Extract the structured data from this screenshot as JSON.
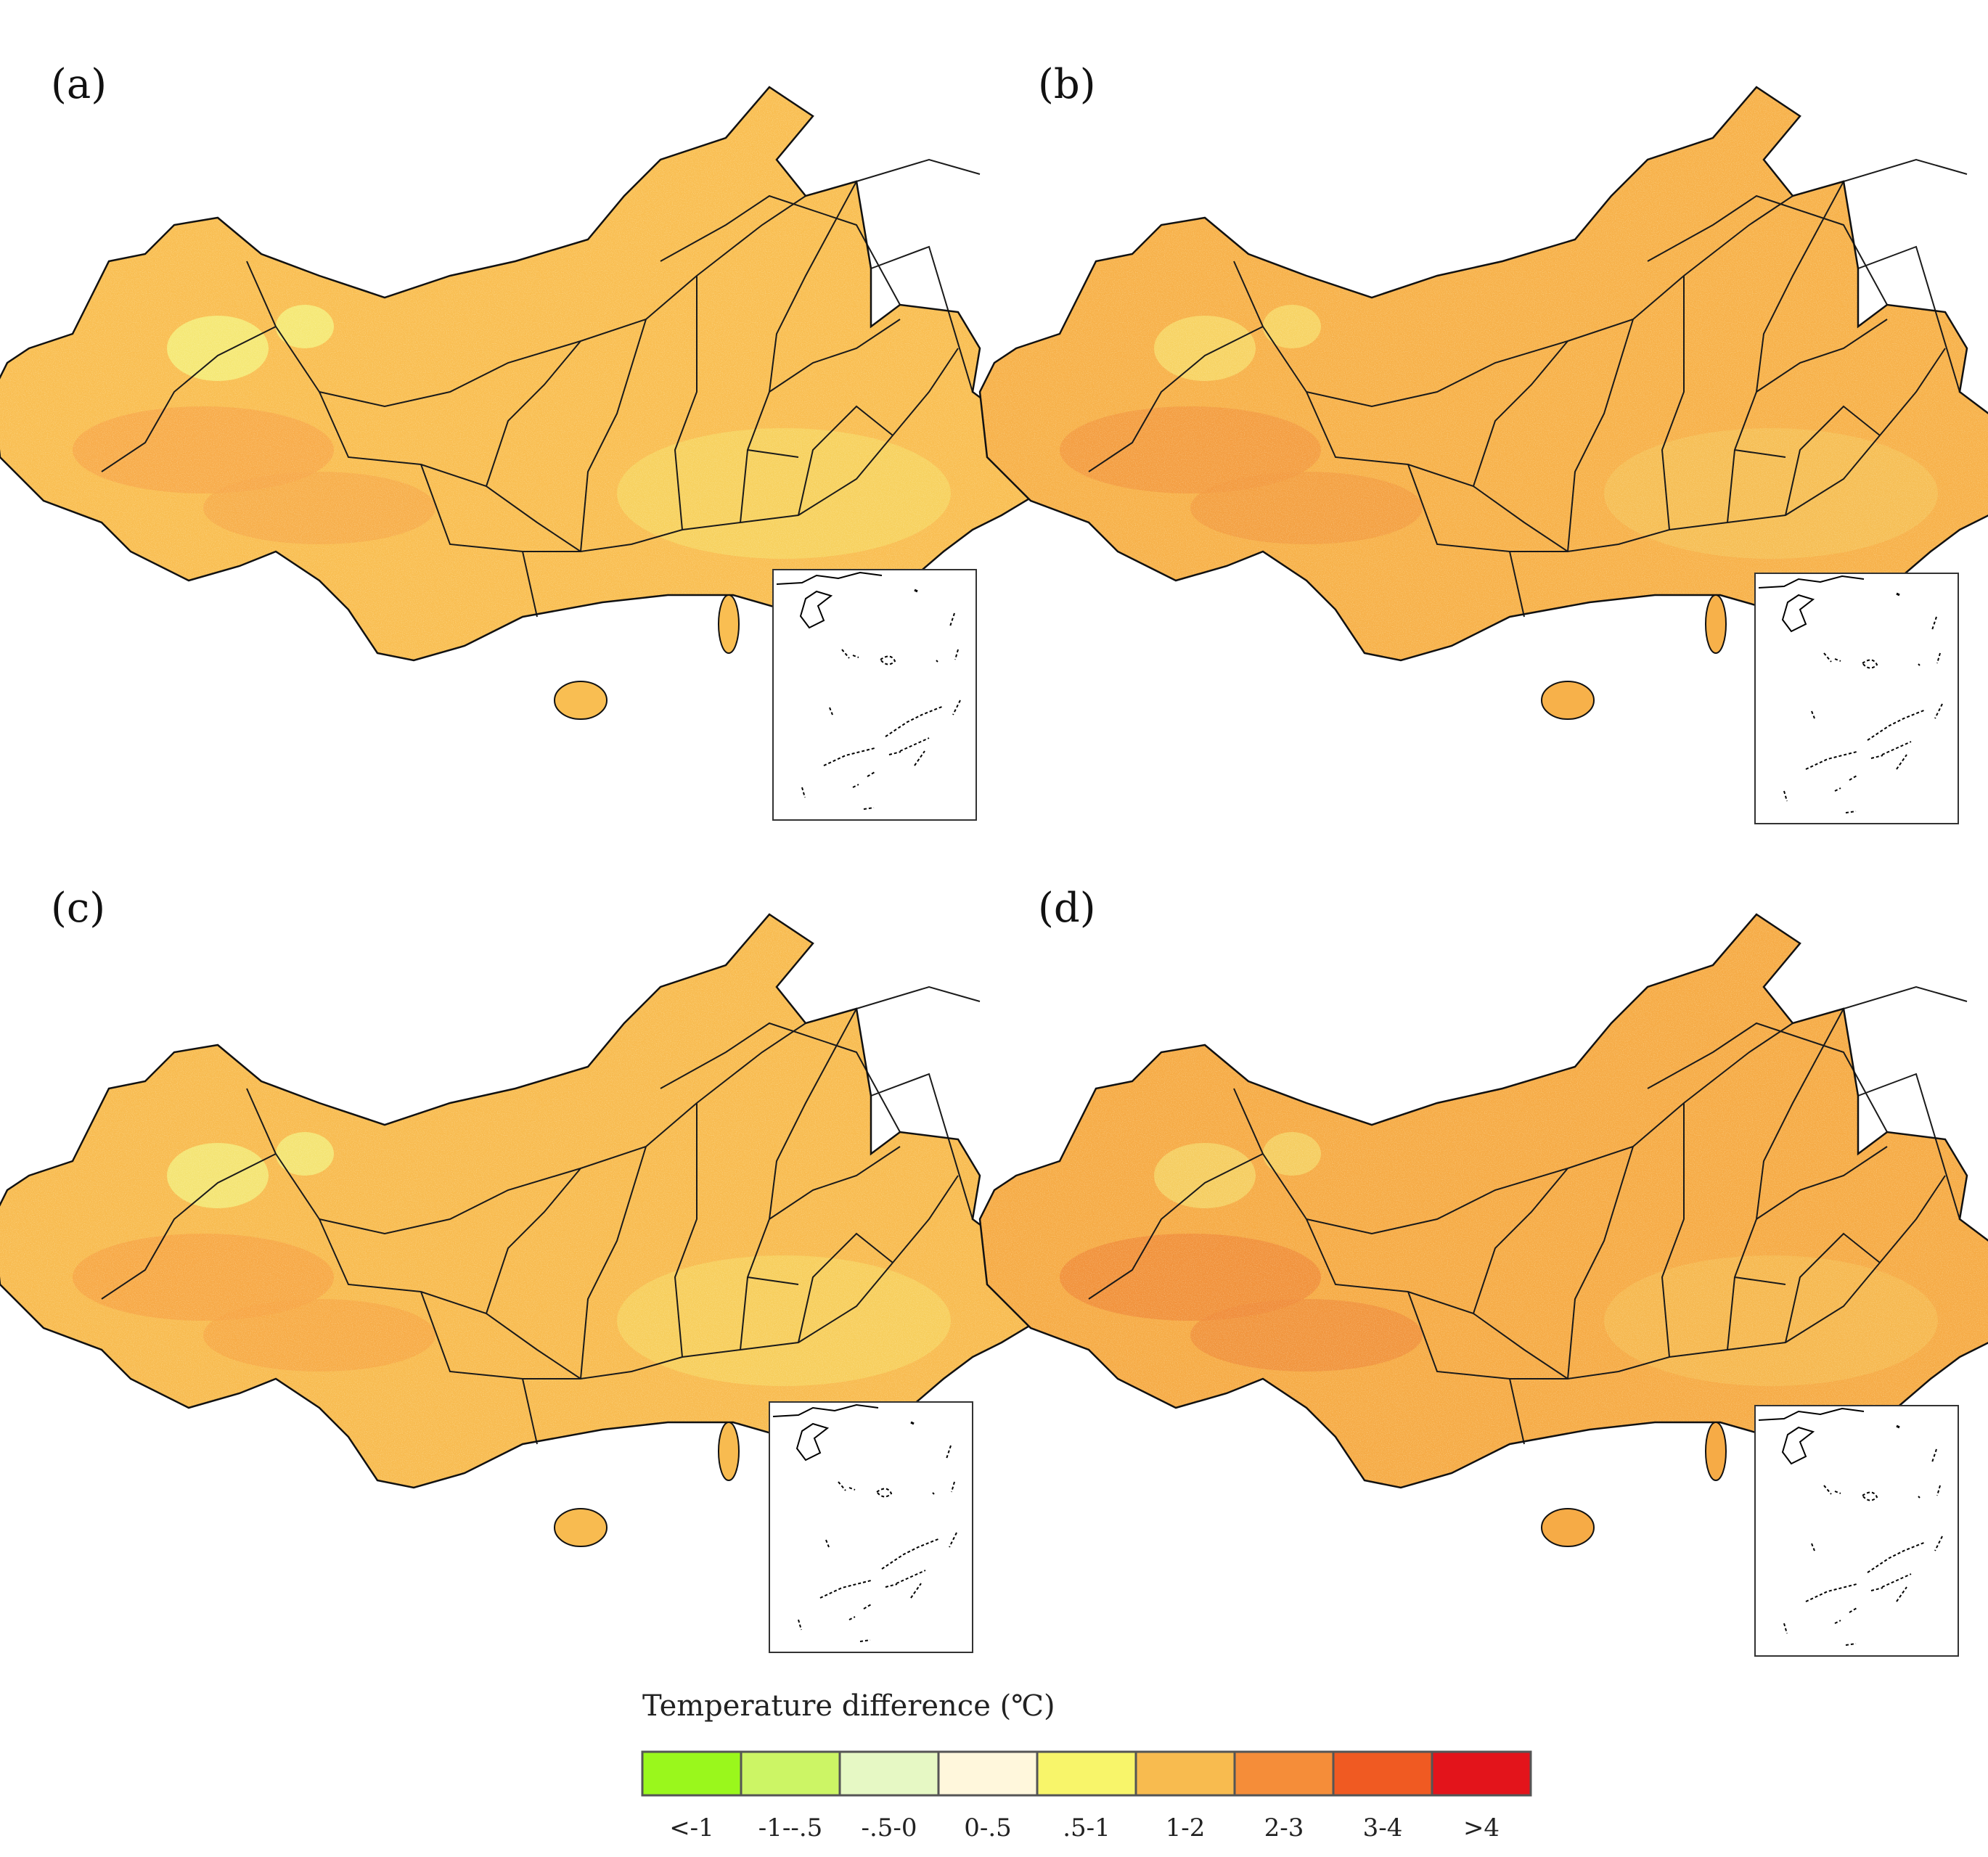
{
  "panels": [
    {
      "label": "(a)",
      "fill": "#f9be52",
      "speckle": "#f6e06a",
      "hot": "#f7a84a",
      "cool": "#f4ec7a"
    },
    {
      "label": "(b)",
      "fill": "#f7b14a",
      "speckle": "#f6c85e",
      "hot": "#f29a40",
      "cool": "#f6d767"
    },
    {
      "label": "(c)",
      "fill": "#f8bb50",
      "speckle": "#f5de68",
      "hot": "#f6a545",
      "cool": "#f3e978"
    },
    {
      "label": "(d)",
      "fill": "#f6ab46",
      "speckle": "#f6c35a",
      "hot": "#f08c3a",
      "cool": "#f5d064"
    }
  ],
  "legend": {
    "title": "Temperature difference (℃)",
    "classes": [
      {
        "label": "<-1",
        "color": "#9af71c"
      },
      {
        "label": "-1--.5",
        "color": "#ccf565"
      },
      {
        "label": "-.5-0",
        "color": "#e6f8c4"
      },
      {
        "label": "0-.5",
        "color": "#fff7dc"
      },
      {
        "label": ".5-1",
        "color": "#f8f56a"
      },
      {
        "label": "1-2",
        "color": "#f8bb4f"
      },
      {
        "label": "2-3",
        "color": "#f58d39"
      },
      {
        "label": "3-4",
        "color": "#f05a22"
      },
      {
        "label": ">4",
        "color": "#e3141b"
      }
    ]
  }
}
